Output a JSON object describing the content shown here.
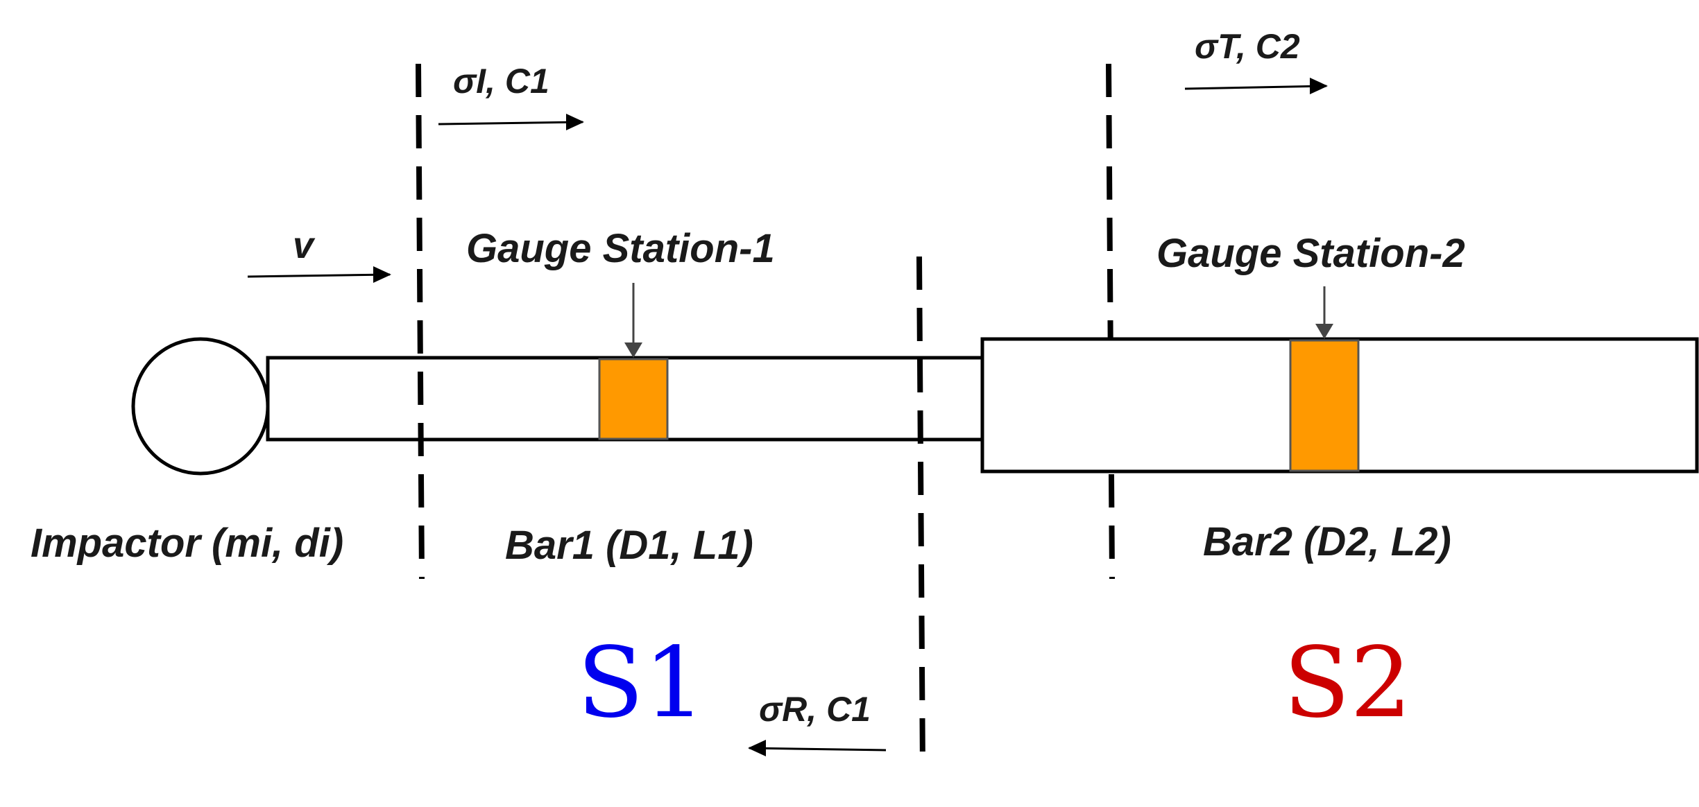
{
  "labels": {
    "incident_wave": "σI, C1",
    "transmitted_wave": "σT, C2",
    "reflected_wave": "σR, C1",
    "velocity": "v",
    "gauge_station_1": "Gauge Station-1",
    "gauge_station_2": "Gauge Station-2",
    "impactor": "Impactor (mi, di)",
    "bar1": "Bar1 (D1, L1)",
    "bar2": "Bar2 (D2, L2)",
    "section_1": "S1",
    "section_2": "S2"
  },
  "colors": {
    "gauge_fill": "#ff9900",
    "section_1": "#0000ee",
    "section_2": "#cc0000",
    "line": "#000000"
  }
}
